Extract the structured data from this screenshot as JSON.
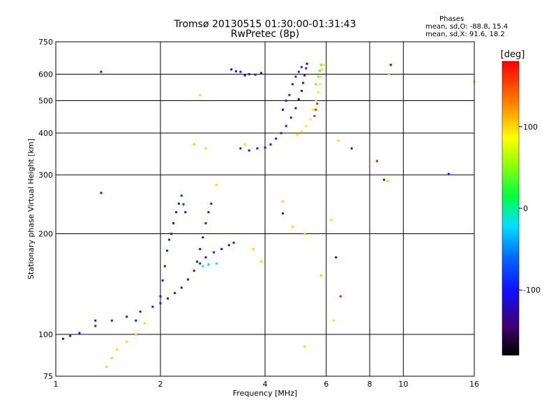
{
  "chart_data": {
    "type": "scatter",
    "title": "Tromsø 20130515 01:30:00-01:31:43",
    "subtitle": "RwPretec (8p)",
    "xlabel": "Frequency [MHz]",
    "ylabel": "Stationary phase Virtual Height [km]",
    "xscale": "log",
    "yscale": "log",
    "xlim": [
      1,
      16
    ],
    "ylim": [
      75,
      750
    ],
    "xticks": [
      1,
      2,
      4,
      6,
      8,
      10,
      16
    ],
    "xtick_labels": [
      "1",
      "2",
      "4",
      "6",
      "8",
      "10",
      "16"
    ],
    "yticks": [
      75,
      100,
      200,
      300,
      400,
      500,
      600,
      750
    ],
    "ytick_labels": [
      "75",
      "100",
      "200",
      "300",
      "400",
      "500",
      "600",
      "750"
    ],
    "grid": true,
    "colorbar": {
      "label": "[deg]",
      "range": [
        -180,
        180
      ],
      "ticks": [
        100,
        0,
        -100
      ],
      "tick_labels": [
        "100",
        "0",
        "-100"
      ]
    },
    "stats_header": "Phases",
    "stats": [
      "mean, sd,O: -88.8, 15.4",
      "mean, sd,X:  91.6, 18.2"
    ],
    "traces": [
      {
        "name": "",
        "phase": -95,
        "points": [
          [
            1.05,
            97
          ],
          [
            1.1,
            99
          ],
          [
            1.17,
            101
          ],
          [
            1.3,
            106
          ],
          [
            1.45,
            110
          ],
          [
            1.6,
            113
          ],
          [
            1.75,
            117
          ],
          [
            1.9,
            121
          ],
          [
            2.0,
            124
          ],
          [
            2.1,
            128
          ],
          [
            2.2,
            133
          ],
          [
            2.3,
            138
          ],
          [
            2.4,
            146
          ],
          [
            2.5,
            155
          ],
          [
            2.6,
            163
          ],
          [
            2.7,
            170
          ],
          [
            2.85,
            176
          ],
          [
            3.0,
            180
          ],
          [
            3.15,
            185
          ],
          [
            3.25,
            188
          ]
        ]
      },
      {
        "name": "",
        "phase": -95,
        "points": [
          [
            2.0,
            130
          ],
          [
            2.03,
            145
          ],
          [
            2.06,
            160
          ],
          [
            2.09,
            178
          ],
          [
            2.12,
            192
          ],
          [
            2.15,
            200
          ],
          [
            2.18,
            215
          ],
          [
            2.22,
            232
          ],
          [
            2.26,
            246
          ],
          [
            2.3,
            260
          ],
          [
            2.33,
            245
          ],
          [
            2.36,
            232
          ]
        ]
      },
      {
        "name": "",
        "phase": -100,
        "points": [
          [
            2.55,
            165
          ],
          [
            2.6,
            180
          ],
          [
            2.65,
            195
          ],
          [
            2.7,
            215
          ],
          [
            2.75,
            232
          ],
          [
            2.8,
            246
          ]
        ]
      },
      {
        "name": "",
        "phase": -100,
        "points": [
          [
            3.2,
            620
          ],
          [
            3.4,
            610
          ],
          [
            3.6,
            600
          ],
          [
            3.75,
            598
          ],
          [
            3.9,
            605
          ],
          [
            3.5,
            595
          ],
          [
            3.3,
            612
          ]
        ]
      },
      {
        "name": "",
        "phase": -98,
        "points": [
          [
            3.4,
            360
          ],
          [
            3.6,
            355
          ],
          [
            3.8,
            360
          ],
          [
            4.0,
            362
          ],
          [
            4.15,
            370
          ],
          [
            4.3,
            385
          ],
          [
            4.45,
            400
          ],
          [
            4.6,
            420
          ],
          [
            4.75,
            445
          ],
          [
            4.9,
            475
          ],
          [
            5.0,
            505
          ],
          [
            5.1,
            535
          ],
          [
            5.15,
            565
          ],
          [
            5.2,
            595
          ],
          [
            5.25,
            625
          ],
          [
            5.28,
            645
          ]
        ]
      },
      {
        "name": "",
        "phase": -92,
        "points": [
          [
            4.7,
            520
          ],
          [
            4.8,
            560
          ],
          [
            4.9,
            590
          ],
          [
            5.0,
            610
          ],
          [
            5.1,
            630
          ],
          [
            4.6,
            500
          ],
          [
            4.5,
            470
          ]
        ]
      },
      {
        "name": "",
        "phase": 95,
        "points": [
          [
            4.95,
            395
          ],
          [
            5.1,
            405
          ],
          [
            5.25,
            420
          ],
          [
            5.4,
            440
          ],
          [
            5.5,
            470
          ],
          [
            5.6,
            500
          ],
          [
            5.7,
            530
          ],
          [
            5.75,
            560
          ],
          [
            5.8,
            590
          ],
          [
            5.85,
            620
          ],
          [
            5.9,
            640
          ]
        ]
      },
      {
        "name": "",
        "phase": 40,
        "points": [
          [
            5.6,
            560
          ],
          [
            5.7,
            590
          ],
          [
            5.75,
            615
          ],
          [
            5.8,
            640
          ]
        ]
      },
      {
        "name": "",
        "phase": 165,
        "points": [
          [
            5.55,
            450
          ],
          [
            5.6,
            470
          ],
          [
            5.65,
            490
          ]
        ]
      },
      {
        "name": "",
        "phase": -10,
        "points": [
          [
            2.65,
            160
          ],
          [
            2.75,
            162
          ],
          [
            2.9,
            163
          ]
        ]
      },
      {
        "name": "",
        "phase": 100,
        "points": [
          [
            1.4,
            80
          ],
          [
            1.45,
            85
          ],
          [
            1.5,
            90
          ],
          [
            1.6,
            95
          ],
          [
            1.7,
            100
          ],
          [
            1.8,
            108
          ],
          [
            2.5,
            370
          ],
          [
            2.7,
            360
          ],
          [
            3.5,
            370
          ],
          [
            3.7,
            180
          ],
          [
            3.9,
            165
          ],
          [
            4.5,
            250
          ],
          [
            4.8,
            210
          ],
          [
            5.2,
            200
          ],
          [
            5.8,
            150
          ],
          [
            6.3,
            110
          ],
          [
            5.2,
            92
          ],
          [
            6.2,
            220
          ],
          [
            6.5,
            380
          ],
          [
            9.0,
            288
          ],
          [
            9.1,
            600
          ],
          [
            2.6,
            520
          ],
          [
            2.9,
            280
          ],
          [
            16.0,
            570
          ]
        ]
      },
      {
        "name": "",
        "phase": -100,
        "points": [
          [
            1.35,
            610
          ],
          [
            1.35,
            265
          ],
          [
            1.3,
            110
          ],
          [
            1.7,
            110
          ],
          [
            6.4,
            170
          ],
          [
            7.1,
            360
          ],
          [
            9.2,
            640
          ],
          [
            13.5,
            302
          ],
          [
            8.8,
            290
          ],
          [
            4.5,
            230
          ]
        ]
      },
      {
        "name": "",
        "phase": 170,
        "points": [
          [
            6.6,
            130
          ],
          [
            8.4,
            330
          ]
        ]
      }
    ]
  }
}
